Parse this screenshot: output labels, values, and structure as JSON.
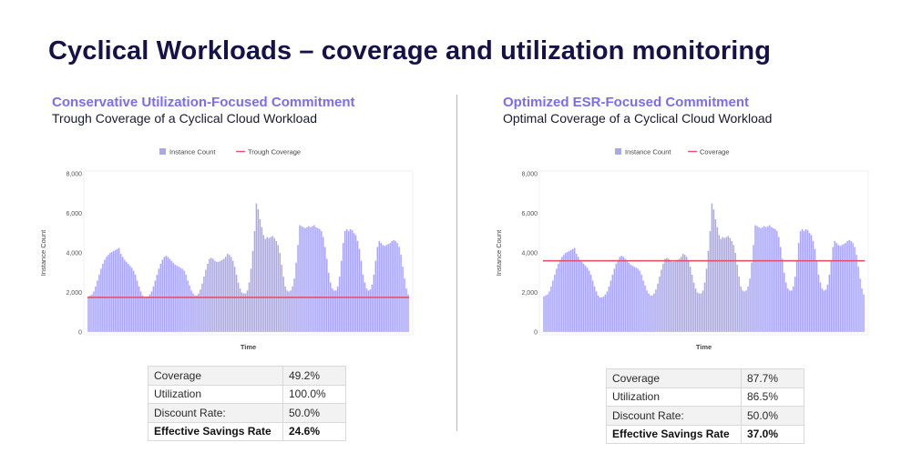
{
  "page": {
    "title": "Cyclical Workloads – coverage and utilization monitoring"
  },
  "colors": {
    "bars": "#aaa6f4",
    "coverage_line": "#e0536a",
    "accent": "#7a6df0",
    "title": "#15124a"
  },
  "panels": [
    {
      "subtitle": "Conservative Utilization-Focused Commitment",
      "caption": "Trough Coverage of a Cyclical Cloud Workload",
      "stats": [
        {
          "label": "Coverage",
          "value": "49.2%"
        },
        {
          "label": "Utilization",
          "value": "100.0%"
        },
        {
          "label": "Discount Rate:",
          "value": "50.0%"
        },
        {
          "label": "Effective Savings Rate",
          "value": "24.6%"
        }
      ]
    },
    {
      "subtitle": "Optimized ESR-Focused Commitment",
      "caption": "Optimal Coverage of a Cyclical Cloud Workload",
      "stats": [
        {
          "label": "Coverage",
          "value": "87.7%"
        },
        {
          "label": "Utilization",
          "value": "86.5%"
        },
        {
          "label": "Discount Rate:",
          "value": "50.0%"
        },
        {
          "label": "Effective Savings Rate",
          "value": "37.0%"
        }
      ]
    }
  ],
  "chart_data": [
    {
      "type": "bar",
      "ylabel": "Instance Count",
      "xlabel": "Time",
      "ylim": [
        0,
        8000
      ],
      "yticks": [
        "0",
        "2,000",
        "4,000",
        "6,000",
        "8,000"
      ],
      "ytick_values": [
        0,
        2000,
        4000,
        6000,
        8000
      ],
      "grid": false,
      "legend_position": "top-center",
      "series": [
        {
          "name": "Instance Count",
          "kind": "bar"
        },
        {
          "name": "Trough Coverage",
          "kind": "line",
          "value": 1750
        }
      ],
      "values": [
        1800,
        1850,
        1900,
        2050,
        2300,
        2600,
        2900,
        3200,
        3450,
        3650,
        3800,
        3900,
        4000,
        4050,
        4100,
        4150,
        4200,
        4250,
        3950,
        3800,
        3650,
        3550,
        3450,
        3350,
        3250,
        3100,
        2900,
        2600,
        2300,
        2050,
        1850,
        1750,
        1750,
        1800,
        1900,
        2050,
        2300,
        2600,
        2900,
        3200,
        3450,
        3650,
        3800,
        3850,
        3800,
        3700,
        3600,
        3500,
        3400,
        3350,
        3300,
        3250,
        3200,
        3100,
        2900,
        2600,
        2350,
        2100,
        1950,
        1850,
        1850,
        1950,
        2150,
        2450,
        2800,
        3150,
        3450,
        3700,
        3750,
        3700,
        3600,
        3550,
        3550,
        3600,
        3650,
        3700,
        3800,
        3950,
        3900,
        3800,
        3600,
        3300,
        2900,
        2500,
        2200,
        2000,
        1950,
        1950,
        2100,
        2500,
        3200,
        4100,
        5100,
        6500,
        6200,
        5700,
        5300,
        4900,
        4700,
        4800,
        4750,
        4800,
        4850,
        4750,
        4600,
        4400,
        4000,
        3400,
        2800,
        2300,
        2100,
        2050,
        2100,
        2300,
        2700,
        3500,
        4400,
        5400,
        5350,
        5300,
        5250,
        5300,
        5350,
        5300,
        5350,
        5400,
        5300,
        5250,
        5200,
        5100,
        4800,
        4300,
        3700,
        3000,
        2500,
        2200,
        2100,
        2100,
        2300,
        2800,
        3600,
        4500,
        5100,
        5200,
        5100,
        5200,
        5150,
        5000,
        4900,
        4600,
        4200,
        3600,
        2900,
        2500,
        2200,
        2100,
        2150,
        2400,
        2900,
        3600,
        4300,
        4600,
        4500,
        4400,
        4350,
        4400,
        4450,
        4500,
        4600,
        4650,
        4600,
        4500,
        4300,
        3900,
        3300,
        2700,
        2200,
        1900
      ]
    },
    {
      "type": "bar",
      "ylabel": "Instance Count",
      "xlabel": "Time",
      "ylim": [
        0,
        8000
      ],
      "yticks": [
        "0",
        "2,000",
        "4,000",
        "6,000",
        "8,000"
      ],
      "ytick_values": [
        0,
        2000,
        4000,
        6000,
        8000
      ],
      "grid": false,
      "legend_position": "top-center",
      "series": [
        {
          "name": "Instance Count",
          "kind": "bar"
        },
        {
          "name": "Coverage",
          "kind": "line",
          "value": 3600
        }
      ],
      "values": [
        1800,
        1850,
        1900,
        2050,
        2300,
        2600,
        2900,
        3200,
        3450,
        3650,
        3800,
        3900,
        4000,
        4050,
        4100,
        4150,
        4200,
        4250,
        3950,
        3800,
        3650,
        3550,
        3450,
        3350,
        3250,
        3100,
        2900,
        2600,
        2300,
        2050,
        1850,
        1750,
        1750,
        1800,
        1900,
        2050,
        2300,
        2600,
        2900,
        3200,
        3450,
        3650,
        3800,
        3850,
        3800,
        3700,
        3600,
        3500,
        3400,
        3350,
        3300,
        3250,
        3200,
        3100,
        2900,
        2600,
        2350,
        2100,
        1950,
        1850,
        1850,
        1950,
        2150,
        2450,
        2800,
        3150,
        3450,
        3700,
        3750,
        3700,
        3600,
        3550,
        3550,
        3600,
        3650,
        3700,
        3800,
        3950,
        3900,
        3800,
        3600,
        3300,
        2900,
        2500,
        2200,
        2000,
        1950,
        1950,
        2100,
        2500,
        3200,
        4100,
        5100,
        6500,
        6200,
        5700,
        5300,
        4900,
        4700,
        4800,
        4750,
        4800,
        4850,
        4750,
        4600,
        4400,
        4000,
        3400,
        2800,
        2300,
        2100,
        2050,
        2100,
        2300,
        2700,
        3500,
        4400,
        5400,
        5350,
        5300,
        5250,
        5300,
        5350,
        5300,
        5350,
        5400,
        5300,
        5250,
        5200,
        5100,
        4800,
        4300,
        3700,
        3000,
        2500,
        2200,
        2100,
        2100,
        2300,
        2800,
        3600,
        4500,
        5100,
        5200,
        5100,
        5200,
        5150,
        5000,
        4900,
        4600,
        4200,
        3600,
        2900,
        2500,
        2200,
        2100,
        2150,
        2400,
        2900,
        3600,
        4300,
        4600,
        4500,
        4400,
        4350,
        4400,
        4450,
        4500,
        4600,
        4650,
        4600,
        4500,
        4300,
        3900,
        3300,
        2700,
        2200,
        1900
      ]
    }
  ]
}
